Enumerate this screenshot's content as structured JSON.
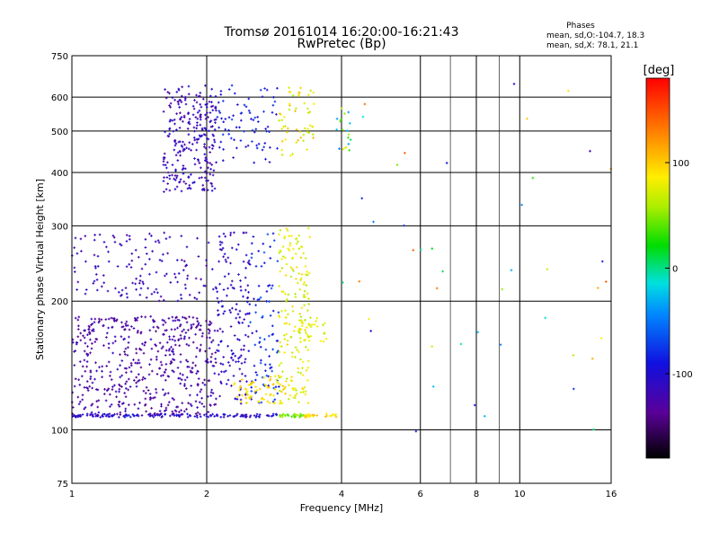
{
  "header": {
    "title": "Tromsø 20161014 16:20:00-16:21:43",
    "subtitle": "RwPretec (Bp)"
  },
  "stats": {
    "heading": "Phases",
    "line_o": "mean, sd,O:-104.7, 18.3",
    "line_x": "mean, sd,X:  78.1, 21.1"
  },
  "colorbar": {
    "unit": "[deg]",
    "tick_labels": [
      "100",
      "0",
      "-100"
    ],
    "ticks": [
      100,
      0,
      -100
    ],
    "range": [
      -180,
      180
    ]
  },
  "chart_data": {
    "type": "scatter",
    "xlabel": "Frequency [MHz]",
    "ylabel": "Stationary phase Virtual Height [km]",
    "xscale": "log",
    "yscale": "log",
    "xlim": [
      1,
      16
    ],
    "ylim": [
      75,
      750
    ],
    "xticks": [
      1,
      2,
      4,
      6,
      8,
      10,
      16
    ],
    "xtick_labels": [
      "1",
      "2",
      "4",
      "6",
      "8",
      "10",
      "16"
    ],
    "yticks": [
      75,
      100,
      200,
      300,
      400,
      500,
      600,
      750
    ],
    "ytick_labels": [
      "75",
      "100",
      "200",
      "300",
      "400",
      "500",
      "600",
      "750"
    ],
    "xgrid_major": [
      2,
      4,
      6,
      8,
      10
    ],
    "xgrid_minor": [
      7,
      9
    ],
    "ygrid": [
      100,
      200,
      300,
      400,
      500,
      600
    ],
    "color_variable": "phase [deg]",
    "clusters": [
      {
        "x": [
          1.6,
          2.1
        ],
        "y": [
          360,
          640
        ],
        "n": 260,
        "phase": [
          -135,
          -95
        ]
      },
      {
        "x": [
          2.1,
          2.9
        ],
        "y": [
          420,
          640
        ],
        "n": 80,
        "phase": [
          -110,
          -70
        ]
      },
      {
        "x": [
          2.9,
          3.5
        ],
        "y": [
          430,
          640
        ],
        "n": 55,
        "phase": [
          60,
          110
        ]
      },
      {
        "x": [
          3.9,
          4.2
        ],
        "y": [
          450,
          560
        ],
        "n": 18,
        "phase": [
          -60,
          90
        ]
      },
      {
        "x": [
          1.0,
          2.1
        ],
        "y": [
          108,
          185
        ],
        "n": 520,
        "phase": [
          -145,
          -110
        ]
      },
      {
        "x": [
          1.0,
          2.1
        ],
        "y": [
          200,
          290
        ],
        "n": 140,
        "phase": [
          -130,
          -100
        ]
      },
      {
        "x": [
          2.1,
          2.5
        ],
        "y": [
          115,
          290
        ],
        "n": 150,
        "phase": [
          -125,
          -95
        ]
      },
      {
        "x": [
          2.5,
          2.9
        ],
        "y": [
          115,
          290
        ],
        "n": 90,
        "phase": [
          -100,
          -60
        ]
      },
      {
        "x": [
          2.3,
          3.0
        ],
        "y": [
          115,
          135
        ],
        "n": 70,
        "phase": [
          80,
          105
        ]
      },
      {
        "x": [
          2.9,
          3.4
        ],
        "y": [
          115,
          300
        ],
        "n": 170,
        "phase": [
          55,
          100
        ]
      },
      {
        "x": [
          3.2,
          3.7
        ],
        "y": [
          160,
          185
        ],
        "n": 35,
        "phase": [
          60,
          90
        ]
      },
      {
        "x": [
          1.0,
          2.9
        ],
        "y": [
          107,
          109
        ],
        "n": 140,
        "phase": [
          -125,
          -85
        ]
      },
      {
        "x": [
          2.9,
          3.3
        ],
        "y": [
          107,
          109
        ],
        "n": 30,
        "phase": [
          30,
          60
        ]
      },
      {
        "x": [
          3.3,
          3.9
        ],
        "y": [
          107,
          109
        ],
        "n": 25,
        "phase": [
          80,
          110
        ]
      },
      {
        "x": [
          4.0,
          16
        ],
        "y": [
          90,
          650
        ],
        "n": 45,
        "phase": [
          -120,
          150
        ]
      }
    ]
  }
}
